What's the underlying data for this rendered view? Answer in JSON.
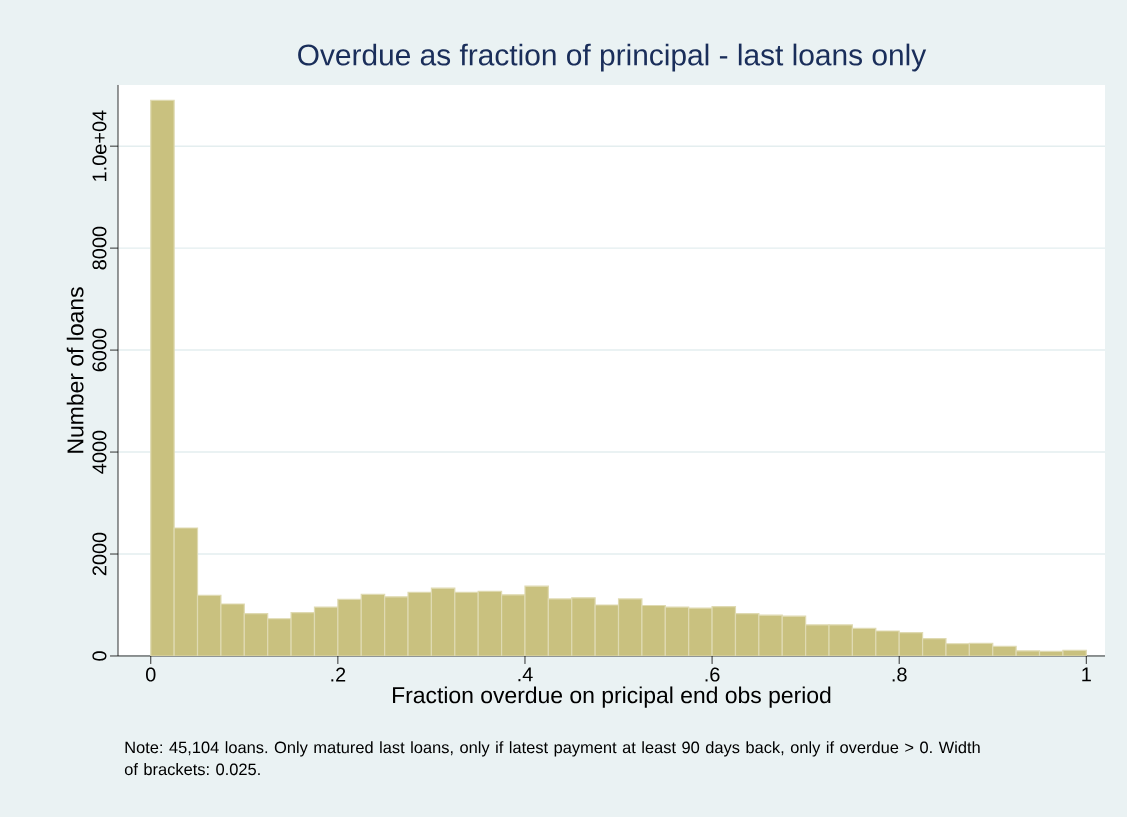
{
  "chart_data": {
    "type": "histogram",
    "title": "Overdue as fraction of principal - last loans only",
    "xlabel": "Fraction overdue on pricipal end obs period",
    "ylabel": "Number of loans",
    "annotations": [
      "Note: 45,104 loans. Only matured last loans, only if latest payment at least 90 days back, only if overdue > 0. Width of brackets: 0.025."
    ],
    "bins": [
      0,
      0.025,
      0.05,
      0.075,
      0.1,
      0.125,
      0.15,
      0.175,
      0.2,
      0.225,
      0.25,
      0.275,
      0.3,
      0.325,
      0.35,
      0.375,
      0.4,
      0.425,
      0.45,
      0.475,
      0.5,
      0.525,
      0.55,
      0.575,
      0.6,
      0.625,
      0.65,
      0.675,
      0.7,
      0.725,
      0.75,
      0.775,
      0.8,
      0.825,
      0.85,
      0.875,
      0.9,
      0.925,
      0.95,
      0.975,
      1
    ],
    "values": [
      10900,
      2510,
      1190,
      1020,
      830,
      730,
      850,
      960,
      1110,
      1210,
      1160,
      1250,
      1330,
      1250,
      1270,
      1200,
      1370,
      1120,
      1140,
      1000,
      1120,
      990,
      960,
      940,
      970,
      830,
      800,
      780,
      610,
      610,
      540,
      490,
      460,
      340,
      240,
      250,
      190,
      100,
      90,
      110
    ],
    "color": "#c9c17f",
    "xlim": [
      -0.035,
      1.02
    ],
    "ylim": [
      0,
      11200
    ],
    "xticks": [
      0,
      {
        "value": 0.2,
        "label": ".2"
      },
      {
        "value": 0.4,
        "label": ".4"
      },
      {
        "value": 0.6,
        "label": ".6"
      },
      {
        "value": 0.8,
        "label": ".8"
      },
      1
    ],
    "yticks": [
      0,
      2000,
      4000,
      6000,
      8000,
      {
        "value": 10000,
        "label": "1.0e+04"
      }
    ],
    "grid": "y"
  }
}
